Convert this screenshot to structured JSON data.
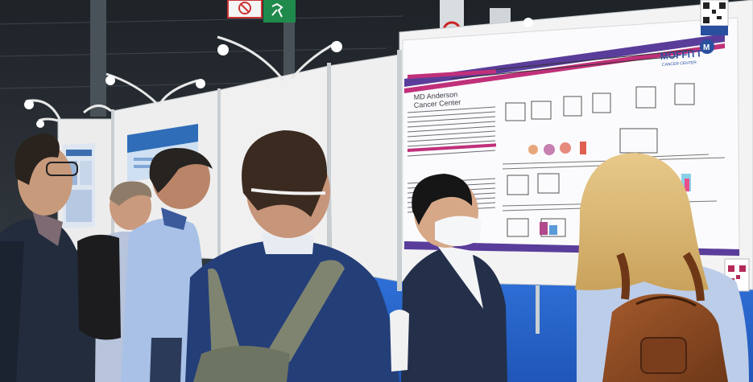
{
  "poster": {
    "logo_left_line1": "MD Anderson",
    "logo_left_line2": "Cancer Center",
    "logo_right": "MOFFITT",
    "logo_right_sub": "CANCER CENTER",
    "logo_right_mark": "M"
  },
  "colors": {
    "poster_accent": "#c0307a",
    "poster_purple": "#5a3d9a",
    "moffitt_blue": "#2a4f9f",
    "exit_sign_green": "#1f8a4c",
    "backpack_brown": "#8a4a24"
  }
}
